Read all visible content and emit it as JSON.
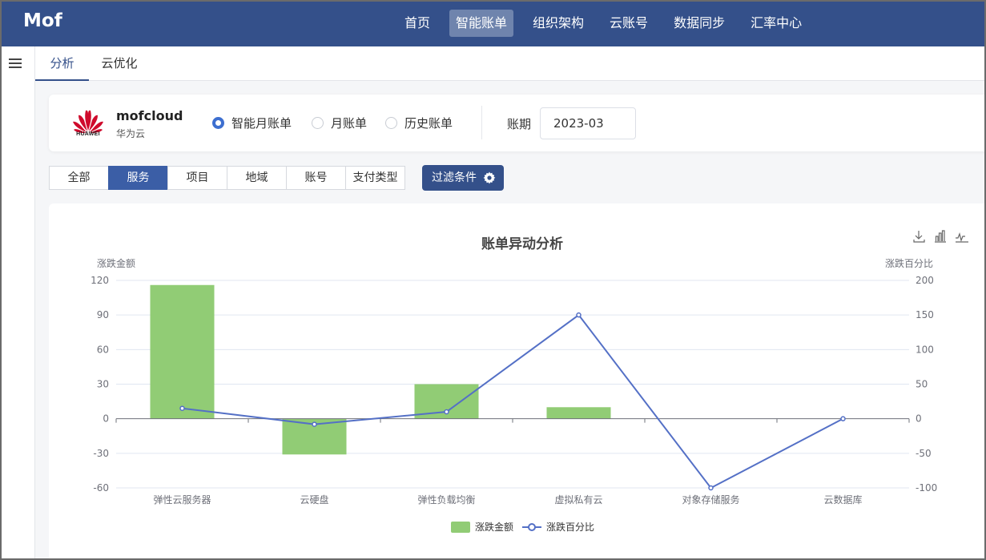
{
  "app": {
    "logo": "Mof"
  },
  "nav": {
    "items": [
      {
        "label": "首页",
        "active": false
      },
      {
        "label": "智能账单",
        "active": true
      },
      {
        "label": "组织架构",
        "active": false
      },
      {
        "label": "云账号",
        "active": false
      },
      {
        "label": "数据同步",
        "active": false
      },
      {
        "label": "汇率中心",
        "active": false
      }
    ]
  },
  "subtabs": [
    {
      "label": "分析",
      "active": true
    },
    {
      "label": "云优化",
      "active": false
    }
  ],
  "account": {
    "brand_text": "HUAWEI",
    "name": "mofcloud",
    "provider": "华为云",
    "bill_modes": [
      {
        "label": "智能月账单",
        "checked": true
      },
      {
        "label": "月账单",
        "checked": false
      },
      {
        "label": "历史账单",
        "checked": false
      }
    ],
    "period_label": "账期",
    "period_value": "2023-03"
  },
  "dimension_tabs": [
    {
      "label": "全部",
      "active": false
    },
    {
      "label": "服务",
      "active": true
    },
    {
      "label": "项目",
      "active": false
    },
    {
      "label": "地域",
      "active": false
    },
    {
      "label": "账号",
      "active": false
    },
    {
      "label": "支付类型",
      "active": false
    }
  ],
  "filter_button": {
    "label": "过滤条件",
    "icon": "gear-icon"
  },
  "toolbox": {
    "icons": [
      "download-icon",
      "bar-chart-icon",
      "line-chart-icon"
    ]
  },
  "chart_data": {
    "type": "bar",
    "title": "账单异动分析",
    "categories": [
      "弹性云服务器",
      "云硬盘",
      "弹性负载均衡",
      "虚拟私有云",
      "对象存储服务",
      "云数据库"
    ],
    "y_left": {
      "name": "涨跌金额",
      "min": -60,
      "max": 120,
      "ticks": [
        120,
        90,
        60,
        30,
        0,
        -30,
        -60
      ]
    },
    "y_right": {
      "name": "涨跌百分比",
      "min": -100,
      "max": 200,
      "ticks": [
        200,
        150,
        100,
        50,
        0,
        -50,
        -100
      ]
    },
    "series": [
      {
        "name": "涨跌金额",
        "kind": "bar",
        "axis": "left",
        "color": "#91cc75",
        "values": [
          116,
          -31,
          30,
          10,
          0,
          0
        ]
      },
      {
        "name": "涨跌百分比",
        "kind": "line",
        "axis": "right",
        "color": "#5470c6",
        "values": [
          15,
          -8,
          10,
          150,
          -100,
          0
        ]
      }
    ],
    "grid": true,
    "legend": "bottom-center"
  }
}
